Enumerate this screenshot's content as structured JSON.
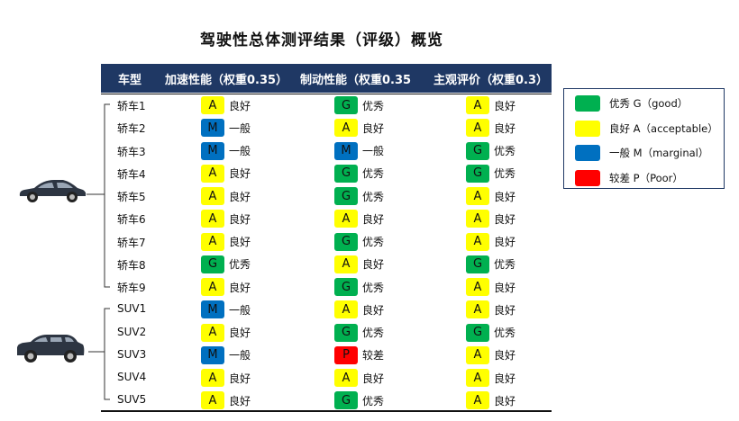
{
  "title": "驾驶性总体测评结果（评级）概览",
  "headers": {
    "model": "车型",
    "accel": "加速性能（权重0.35）",
    "brake": "制动性能（权重0.35",
    "subjective": "主观评价（权重0.3）"
  },
  "grade_colors": {
    "G": "#00b050",
    "A": "#ffff00",
    "M": "#0070c0",
    "P": "#ff0000"
  },
  "grade_labels": {
    "G": "优秀",
    "A": "良好",
    "M": "一般",
    "P": "较差"
  },
  "rows": [
    {
      "model": "轿车1",
      "accel": "A",
      "brake": "G",
      "subjective": "A"
    },
    {
      "model": "轿车2",
      "accel": "M",
      "brake": "A",
      "subjective": "A"
    },
    {
      "model": "轿车3",
      "accel": "M",
      "brake": "M",
      "subjective": "G"
    },
    {
      "model": "轿车4",
      "accel": "A",
      "brake": "G",
      "subjective": "G"
    },
    {
      "model": "轿车5",
      "accel": "A",
      "brake": "G",
      "subjective": "A"
    },
    {
      "model": "轿车6",
      "accel": "A",
      "brake": "A",
      "subjective": "A"
    },
    {
      "model": "轿车7",
      "accel": "A",
      "brake": "G",
      "subjective": "A"
    },
    {
      "model": "轿车8",
      "accel": "G",
      "brake": "A",
      "subjective": "G"
    },
    {
      "model": "轿车9",
      "accel": "A",
      "brake": "G",
      "subjective": "A"
    },
    {
      "model": "SUV1",
      "accel": "M",
      "brake": "A",
      "subjective": "A"
    },
    {
      "model": "SUV2",
      "accel": "A",
      "brake": "G",
      "subjective": "G"
    },
    {
      "model": "SUV3",
      "accel": "M",
      "brake": "P",
      "subjective": "A"
    },
    {
      "model": "SUV4",
      "accel": "A",
      "brake": "A",
      "subjective": "A"
    },
    {
      "model": "SUV5",
      "accel": "A",
      "brake": "G",
      "subjective": "A"
    }
  ],
  "legend": [
    {
      "grade": "G",
      "text": "优秀 G（good）"
    },
    {
      "grade": "A",
      "text": "良好 A（acceptable）"
    },
    {
      "grade": "M",
      "text": "一般 M（marginal）"
    },
    {
      "grade": "P",
      "text": "较差 P（Poor）"
    }
  ],
  "car_icons": {
    "sedan": "sedan-car-icon",
    "suv": "suv-car-icon"
  }
}
